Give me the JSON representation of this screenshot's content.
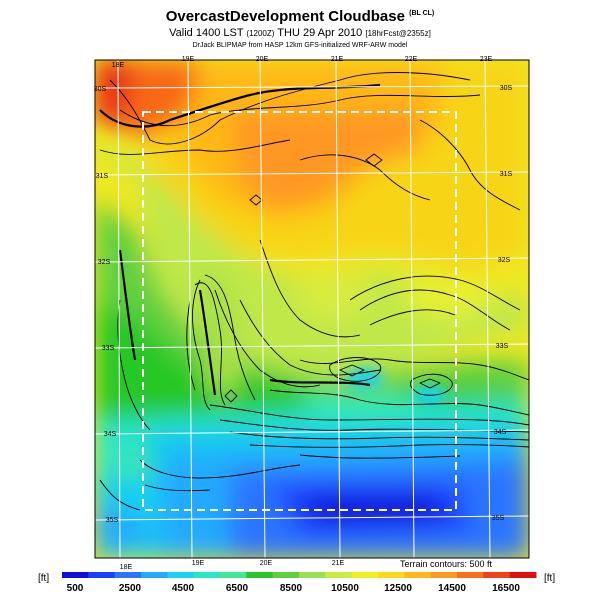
{
  "header": {
    "title": "OvercastDevelopment Cloudbase",
    "title_suffix": "(BL CL)",
    "valid_time": "Valid 1400 LST",
    "valid_time_paren": "(1200Z)",
    "valid_date": "THU 29 Apr 2010",
    "forecast_info": "[18hrFcst@2355z]",
    "credit": "DrJack BLIPMAP from HASP 12km GFS-initialized WRF-ARW model"
  },
  "map": {
    "lon_labels_top": [
      "18E",
      "19E",
      "20E",
      "21E",
      "22E",
      "23E"
    ],
    "lon_labels_bottom": [
      "18E",
      "19E",
      "20E",
      "21E"
    ],
    "lat_labels_right": [
      "30S",
      "31S",
      "32S",
      "33S",
      "34S",
      "35S"
    ],
    "lat_labels_left": [
      "30S",
      "31S",
      "32S",
      "33S",
      "34S",
      "35S"
    ],
    "terrain_note": "Terrain contours: 500 ft"
  },
  "colorbar": {
    "unit_left": "[ft]",
    "unit_right": "[ft]",
    "tick_labels": [
      "500",
      "2500",
      "4500",
      "6500",
      "8500",
      "10500",
      "12500",
      "14500",
      "16500"
    ],
    "colors": [
      "#1010d8",
      "#1a40ff",
      "#2a74ff",
      "#22aaff",
      "#18d2f0",
      "#28e6c8",
      "#40e898",
      "#28c828",
      "#60d040",
      "#98e050",
      "#c8ec40",
      "#f0f020",
      "#ffd818",
      "#ffb818",
      "#ff9820",
      "#f87018",
      "#f04018",
      "#e01010"
    ]
  }
}
